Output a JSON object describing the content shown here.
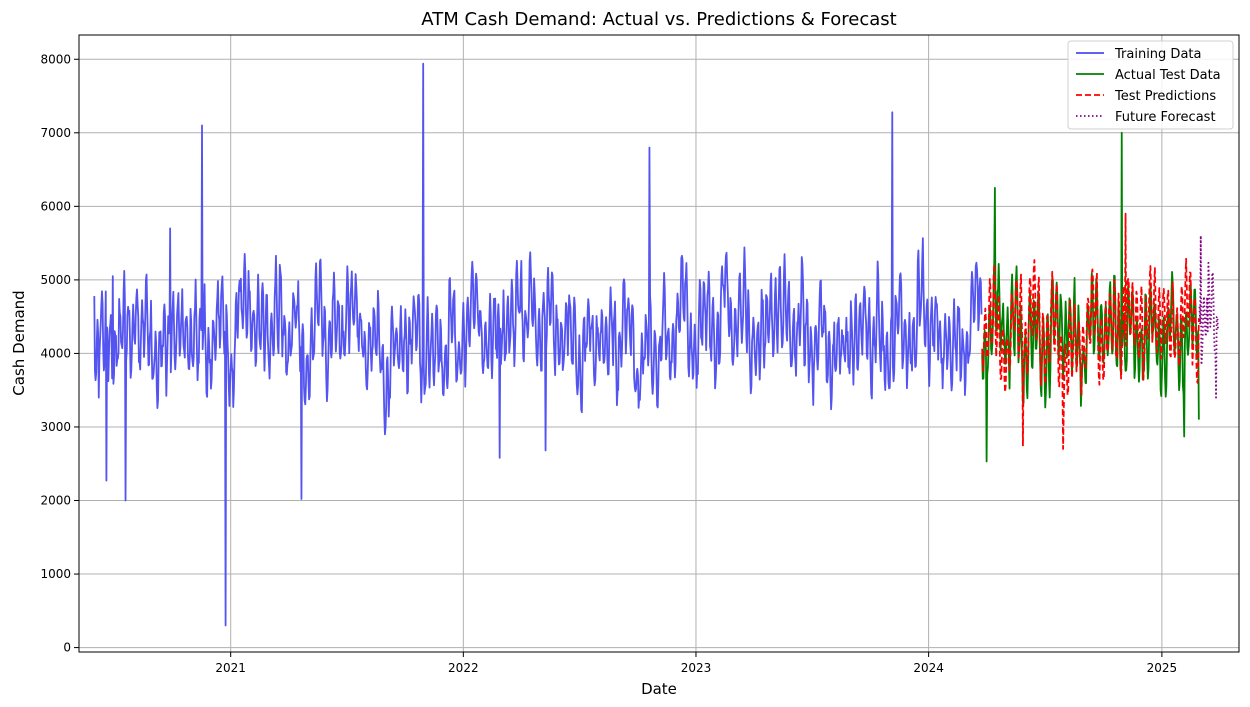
{
  "chart_data": {
    "type": "line",
    "title": "ATM Cash Demand: Actual vs. Predictions & Forecast",
    "xlabel": "Date",
    "ylabel": "Cash Demand",
    "xlim": [
      "2020-05-08",
      "2025-05-02"
    ],
    "ylim": [
      -60,
      8330
    ],
    "x_ticks": [
      "2021-01-01",
      "2022-01-01",
      "2023-01-01",
      "2024-01-01",
      "2025-01-01"
    ],
    "x_tick_labels": [
      "2021",
      "2022",
      "2023",
      "2024",
      "2025"
    ],
    "y_ticks": [
      0,
      1000,
      2000,
      3000,
      4000,
      5000,
      6000,
      7000,
      8000
    ],
    "grid": true,
    "legend_position": "top-right",
    "series": [
      {
        "name": "Training Data",
        "color": "#4b4bf0",
        "style": "solid",
        "x_start": "2020-06-01",
        "x_end": "2024-03-24",
        "base": 4300,
        "amplitude": 700,
        "noise": 450,
        "min": 2500,
        "max": 6000,
        "seed": 7,
        "anchors": [
          [
            "2020-06-01",
            4780
          ],
          [
            "2020-06-08",
            3400
          ],
          [
            "2020-06-20",
            2270
          ],
          [
            "2020-06-30",
            5050
          ],
          [
            "2020-07-20",
            2000
          ],
          [
            "2020-09-28",
            5700
          ],
          [
            "2020-11-17",
            7100
          ],
          [
            "2020-12-24",
            300
          ],
          [
            "2021-04-22",
            2020
          ],
          [
            "2021-10-30",
            7940
          ],
          [
            "2022-02-27",
            2580
          ],
          [
            "2022-05-10",
            2680
          ],
          [
            "2022-10-20",
            6800
          ],
          [
            "2023-11-05",
            7280
          ]
        ]
      },
      {
        "name": "Actual Test Data",
        "color": "#008000",
        "style": "solid",
        "x_start": "2024-03-25",
        "x_end": "2025-02-28",
        "base": 4300,
        "amplitude": 750,
        "noise": 350,
        "min": 3000,
        "max": 5900,
        "seed": 21,
        "anchors": [
          [
            "2024-04-01",
            2530
          ],
          [
            "2024-04-14",
            6250
          ],
          [
            "2024-10-30",
            7000
          ],
          [
            "2025-02-05",
            2870
          ],
          [
            "2025-02-28",
            3100
          ]
        ]
      },
      {
        "name": "Test Predictions",
        "color": "#ff0000",
        "style": "dashed",
        "x_start": "2024-03-25",
        "x_end": "2025-02-28",
        "base": 4350,
        "amplitude": 800,
        "noise": 300,
        "min": 2700,
        "max": 5900,
        "seed": 33,
        "anchors": [
          [
            "2024-05-28",
            2740
          ],
          [
            "2024-07-30",
            2700
          ],
          [
            "2024-11-05",
            5900
          ]
        ]
      },
      {
        "name": "Future Forecast",
        "color": "#800080",
        "style": "dotted",
        "x_start": "2025-03-01",
        "x_end": "2025-03-30",
        "base": 4400,
        "amplitude": 700,
        "noise": 150,
        "min": 3400,
        "max": 5600,
        "seed": 5,
        "anchors": [
          [
            "2025-03-03",
            5600
          ],
          [
            "2025-03-14",
            4300
          ],
          [
            "2025-03-27",
            3400
          ]
        ]
      }
    ]
  }
}
